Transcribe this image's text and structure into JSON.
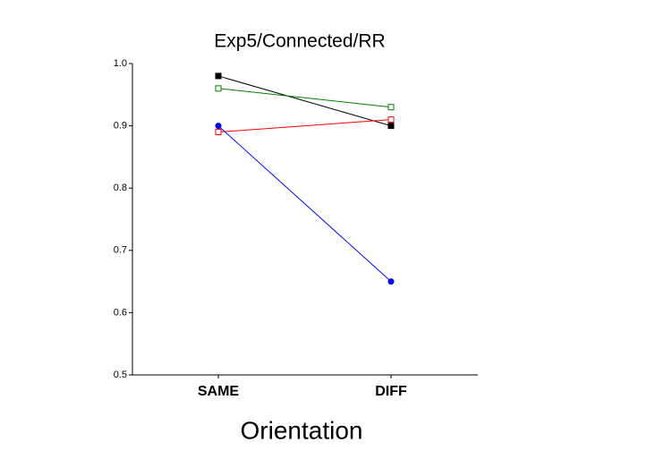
{
  "chart_data": {
    "type": "line",
    "title": "Exp5/Connected/RR",
    "x_label": "Orientation",
    "categories": [
      "SAME",
      "DIFF"
    ],
    "series": [
      {
        "color": "#000000",
        "marker": "square",
        "filled": true,
        "values": [
          0.98,
          0.9
        ]
      },
      {
        "color": "#008000",
        "marker": "square",
        "filled": false,
        "values": [
          0.96,
          0.93
        ]
      },
      {
        "color": "#ff0000",
        "marker": "square",
        "filled": false,
        "values": [
          0.89,
          0.91
        ]
      },
      {
        "color": "#0000ff",
        "marker": "circle",
        "filled": true,
        "values": [
          0.9,
          0.65
        ]
      }
    ],
    "ylim": [
      0.5,
      1.0
    ],
    "yticks": [
      0.5,
      0.6,
      0.7,
      0.8,
      0.9,
      {
        "value": 1.0,
        "label": "1.0"
      }
    ],
    "grid": false
  }
}
